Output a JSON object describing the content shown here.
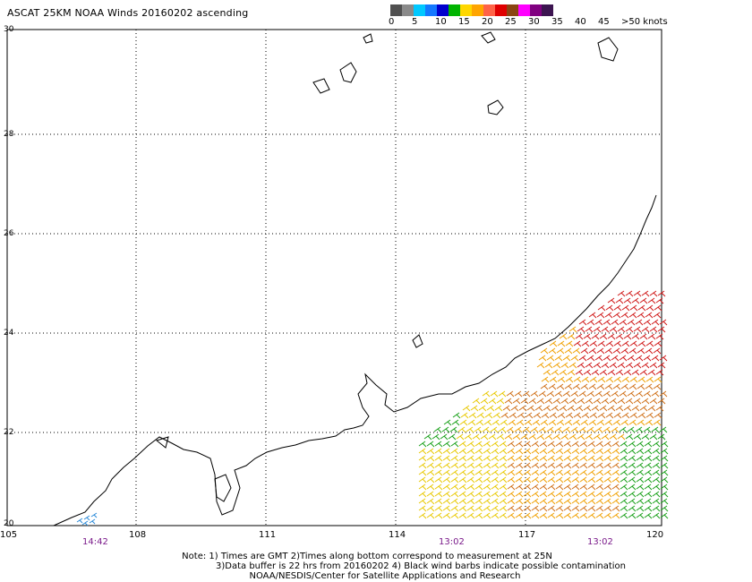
{
  "title": "ASCAT 25KM NOAA Winds 20160202 ascending",
  "scale": {
    "colors": [
      "#505050",
      "#8a8a8a",
      "#00c8ff",
      "#1478ff",
      "#0000cd",
      "#00b400",
      "#ffd700",
      "#ffa500",
      "#ff6347",
      "#e00000",
      "#8b4513",
      "#ff00ff",
      "#800080",
      "#3c1450"
    ],
    "labels": [
      "0",
      "5",
      "10",
      "15",
      "20",
      "25",
      "30",
      "35",
      "40",
      "45",
      ">50 knots"
    ]
  },
  "axes": {
    "lat_labels": [
      "30",
      "28",
      "26",
      "24",
      "22",
      "20"
    ],
    "lon_labels": [
      "105",
      "108",
      "111",
      "114",
      "117",
      "120"
    ]
  },
  "pass_times": [
    "14:42",
    "13:02",
    "13:02"
  ],
  "notes": [
    "Note: 1) Times are GMT 2)Times along bottom correspond to measurement at 25N",
    "3)Data buffer is 22 hrs from 20160202 4) Black wind barbs indicate possible contamination",
    "NOAA/NESDIS/Center for Satellite Applications and Research"
  ]
}
